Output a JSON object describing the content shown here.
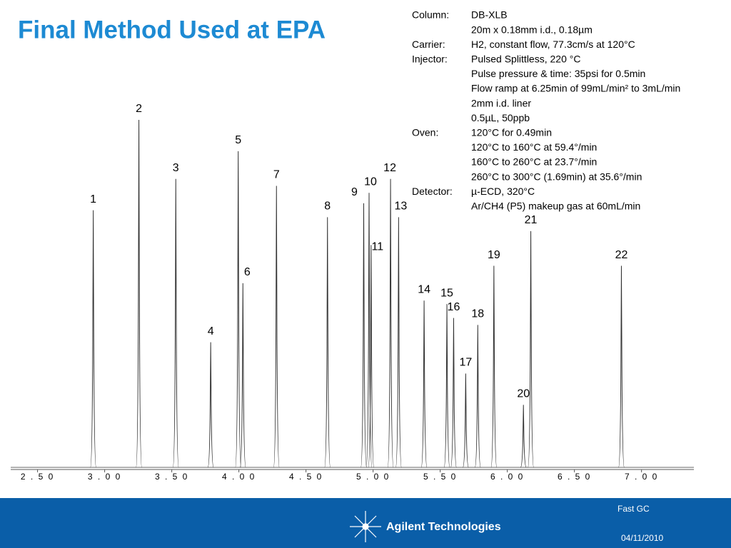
{
  "title": "Final Method Used at EPA",
  "conditions": [
    {
      "label": "Column:",
      "lines": [
        "DB-XLB",
        "20m x 0.18mm i.d., 0.18µm"
      ]
    },
    {
      "label": "Carrier:",
      "lines": [
        "H2, constant flow, 77.3cm/s at 120°C"
      ]
    },
    {
      "label": "Injector:",
      "lines": [
        "Pulsed Splittless, 220 °C",
        "Pulse pressure & time: 35psi for 0.5min",
        "Flow ramp at 6.25min of 99mL/min² to 3mL/min",
        "2mm i.d. liner",
        "0.5µL, 50ppb"
      ]
    },
    {
      "label": "Oven:",
      "lines": [
        "120°C for 0.49min",
        "120°C to 160°C at 59.4°/min",
        "160°C to 260°C at 23.7°/min",
        "260°C to 300°C (1.69min) at 35.6°/min"
      ]
    },
    {
      "label": "Detector:",
      "lines": [
        " µ-ECD, 320°C",
        "Ar/CH4 (P5) makeup gas at 60mL/min"
      ]
    }
  ],
  "chart_data": {
    "type": "chromatogram",
    "xlim": [
      2.3,
      7.39
    ],
    "xticks": [
      {
        "value": 2.5,
        "label": "2 . 5 0"
      },
      {
        "value": 3.0,
        "label": "3 . 0 0"
      },
      {
        "value": 3.5,
        "label": "3 . 5 0"
      },
      {
        "value": 4.0,
        "label": "4 . 0 0"
      },
      {
        "value": 4.5,
        "label": "4 . 5 0"
      },
      {
        "value": 5.0,
        "label": "5 . 0 0"
      },
      {
        "value": 5.5,
        "label": "5 . 5 0"
      },
      {
        "value": 6.0,
        "label": "6 . 0 0"
      },
      {
        "value": 6.5,
        "label": "6 . 5 0"
      },
      {
        "value": 7.0,
        "label": "7 . 0 0"
      }
    ],
    "color": "#333333",
    "peaks": [
      {
        "label": "1",
        "x": 2.915,
        "height": 74
      },
      {
        "label": "2",
        "x": 3.255,
        "height": 100
      },
      {
        "label": "3",
        "x": 3.53,
        "height": 83
      },
      {
        "label": "4",
        "x": 3.79,
        "height": 36
      },
      {
        "label": "5",
        "x": 3.995,
        "height": 91
      },
      {
        "label": "6",
        "x": 4.03,
        "height": 53
      },
      {
        "label": "7",
        "x": 4.28,
        "height": 81
      },
      {
        "label": "8",
        "x": 4.66,
        "height": 72
      },
      {
        "label": "9",
        "x": 4.93,
        "height": 76
      },
      {
        "label": "10",
        "x": 4.97,
        "height": 79
      },
      {
        "label": "11",
        "x": 4.985,
        "height": 64
      },
      {
        "label": "12",
        "x": 5.13,
        "height": 83
      },
      {
        "label": "13",
        "x": 5.19,
        "height": 72
      },
      {
        "label": "14",
        "x": 5.38,
        "height": 48
      },
      {
        "label": "15",
        "x": 5.55,
        "height": 47
      },
      {
        "label": "16",
        "x": 5.6,
        "height": 43
      },
      {
        "label": "17",
        "x": 5.69,
        "height": 27
      },
      {
        "label": "18",
        "x": 5.78,
        "height": 41
      },
      {
        "label": "19",
        "x": 5.9,
        "height": 58
      },
      {
        "label": "20",
        "x": 6.12,
        "height": 18
      },
      {
        "label": "21",
        "x": 6.175,
        "height": 68
      },
      {
        "label": "22",
        "x": 6.85,
        "height": 58
      }
    ]
  },
  "footer": {
    "brand": "Agilent Technologies",
    "topic": "Fast GC",
    "date": "04/11/2010"
  }
}
